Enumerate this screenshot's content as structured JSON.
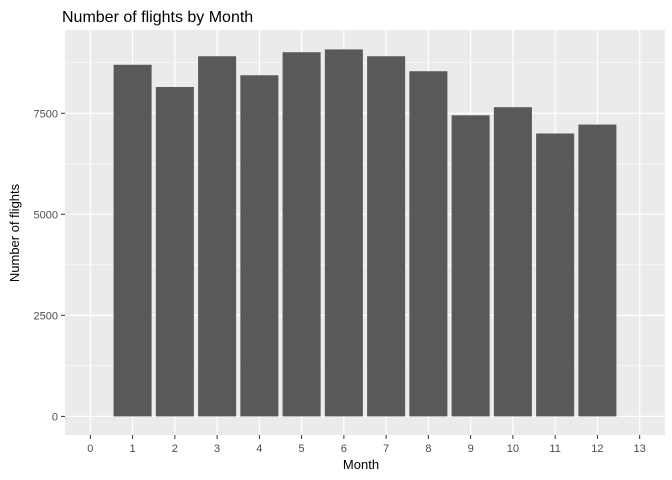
{
  "chart_data": {
    "type": "bar",
    "title": "Number of flights by Month",
    "xlabel": "Month",
    "ylabel": "Number of flights",
    "categories": [
      1,
      2,
      3,
      4,
      5,
      6,
      7,
      8,
      9,
      10,
      11,
      12
    ],
    "values": [
      8700,
      8150,
      8910,
      8440,
      9010,
      9080,
      8910,
      8540,
      7450,
      7650,
      7000,
      7220
    ],
    "xlim": [
      -0.6,
      13.6
    ],
    "ylim": [
      -460,
      9560
    ],
    "x_ticks": [
      0,
      1,
      2,
      3,
      4,
      5,
      6,
      7,
      8,
      9,
      10,
      11,
      12,
      13
    ],
    "y_ticks": [
      0,
      2500,
      5000,
      7500
    ],
    "grid": true,
    "colors": {
      "panel": "#ebebeb",
      "grid": "#ffffff",
      "bar": "#595959",
      "tick": "#4d4d4d",
      "tick_mark": "#333333"
    }
  }
}
